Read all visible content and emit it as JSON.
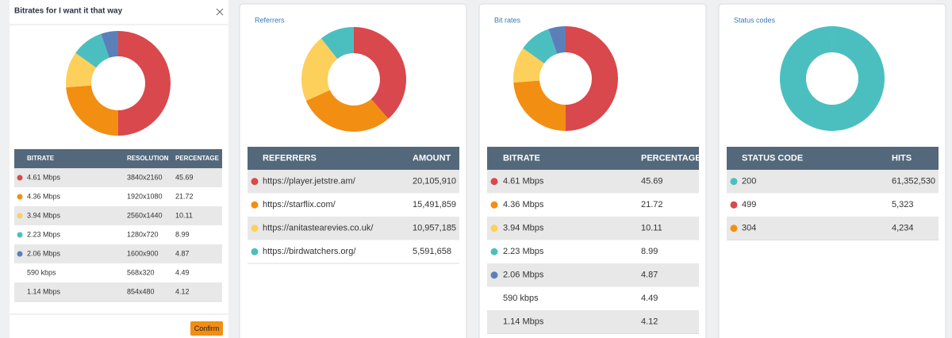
{
  "panels": [
    {
      "title": "Bitrates for I want it that way",
      "headers": [
        "BITRATE",
        "RESOLUTION",
        "PERCENTAGE"
      ],
      "button": "Confirm",
      "rows": [
        {
          "label": "4.61 Mbps",
          "color": "#d9484c",
          "resolution": "3840x2160",
          "value": 45.69
        },
        {
          "label": "4.36 Mbps",
          "color": "#f28e12",
          "resolution": "1920x1080",
          "value": 21.72
        },
        {
          "label": "3.94 Mbps",
          "color": "#fdd05c",
          "resolution": "2560x1440",
          "value": 10.11
        },
        {
          "label": "2.23 Mbps",
          "color": "#4bbfbf",
          "resolution": "1280x720",
          "value": 8.99
        },
        {
          "label": "2.06 Mbps",
          "color": "#5b80b9",
          "resolution": "1600x900",
          "value": 4.87
        },
        {
          "label": "590 kbps",
          "resolution": "568x320",
          "value": 4.49
        },
        {
          "label": "1.14 Mbps",
          "resolution": "854x480",
          "value": 4.12
        }
      ]
    },
    {
      "title": "Referrers",
      "headers": [
        "REFERRERS",
        "AMOUNT"
      ],
      "rows": [
        {
          "label": "https://player.jetstre.am/",
          "color": "#d9484c",
          "value": 20105910,
          "value_label": "20,105,910"
        },
        {
          "label": "https://starflix.com/",
          "color": "#f28e12",
          "value": 15491859,
          "value_label": "15,491,859"
        },
        {
          "label": "https://anitastearevies.co.uk/",
          "color": "#fdd05c",
          "value": 10957185,
          "value_label": "10,957,185"
        },
        {
          "label": "https://birdwatchers.org/",
          "color": "#4bbfbf",
          "value": 5591658,
          "value_label": "5,591,658"
        }
      ]
    },
    {
      "title": "Bit rates",
      "headers": [
        "BITRATE",
        "PERCENTAGE"
      ],
      "rows": [
        {
          "label": "4.61 Mbps",
          "color": "#d9484c",
          "value": 45.69
        },
        {
          "label": "4.36 Mbps",
          "color": "#f28e12",
          "value": 21.72
        },
        {
          "label": "3.94 Mbps",
          "color": "#fdd05c",
          "value": 10.11
        },
        {
          "label": "2.23 Mbps",
          "color": "#4bbfbf",
          "value": 8.99
        },
        {
          "label": "2.06 Mbps",
          "color": "#5b80b9",
          "value": 4.87
        },
        {
          "label": "590 kbps",
          "value": 4.49
        },
        {
          "label": "1.14 Mbps",
          "value": 4.12
        }
      ]
    },
    {
      "title": "Status codes",
      "headers": [
        "STATUS CODE",
        "HITS"
      ],
      "rows": [
        {
          "label": "200",
          "color": "#4bbfbf",
          "value": 61352530,
          "value_label": "61,352,530"
        },
        {
          "label": "499",
          "color": "#d9484c",
          "value": 5323,
          "value_label": "5,323"
        },
        {
          "label": "304",
          "color": "#f28e12",
          "value": 4234,
          "value_label": "4,234"
        }
      ]
    }
  ]
}
